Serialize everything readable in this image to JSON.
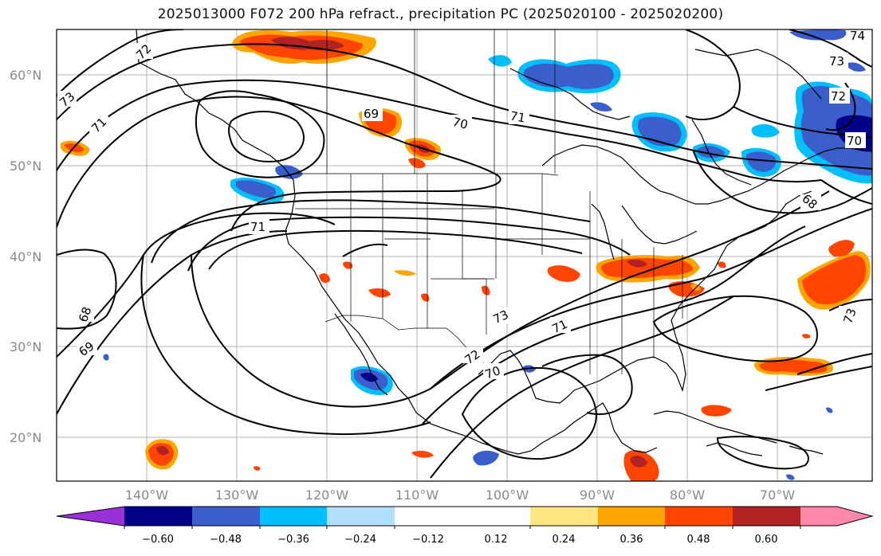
{
  "title": "2025013000 F072 200 hPa refract., precipitation PC (2025020100 - 2025020200)",
  "map": {
    "lat_labels": [
      "60°N",
      "50°N",
      "40°N",
      "30°N",
      "20°N"
    ],
    "lon_labels": [
      "140°W",
      "130°W",
      "120°W",
      "110°W",
      "100°W",
      "90°W",
      "80°W",
      "70°W"
    ],
    "contour_labels": [
      "72",
      "73",
      "71",
      "69",
      "70",
      "71",
      "71",
      "68",
      "69",
      "72",
      "73",
      "71",
      "70",
      "73",
      "72",
      "74",
      "70",
      "68",
      "73"
    ],
    "colors": {
      "contour": "#000000",
      "grid": "#b0b0b0",
      "coast": "#000000"
    }
  },
  "colorbar": {
    "ticks": [
      "−0.60",
      "−0.48",
      "−0.36",
      "−0.24",
      "−0.12",
      "0.12",
      "0.24",
      "0.36",
      "0.48",
      "0.60"
    ],
    "colors": [
      "#9b30d9",
      "#00008b",
      "#3a5fcd",
      "#00bfff",
      "#b0e0ff",
      "#ffffff",
      "#ffe680",
      "#ffa500",
      "#ff4500",
      "#b22222",
      "#ff88aa"
    ]
  }
}
